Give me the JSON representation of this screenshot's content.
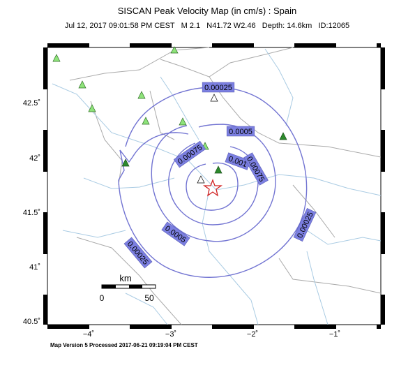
{
  "header": {
    "title": "SISCAN Peak Velocity Map (in cm/s) : Spain",
    "subtitle": "Jul 12, 2017 09:01:58 PM CEST   M 2.1   N41.72 W2.46   Depth: 14.6km   ID:12065"
  },
  "map": {
    "lat_labels": [
      "42.5˚",
      "42˚",
      "41.5˚",
      "41˚",
      "40.5˚"
    ],
    "lon_labels": [
      "−4˚",
      "−3˚",
      "−2˚",
      "−1˚"
    ],
    "contour_labels": [
      "0.00025",
      "0.0005",
      "0.00075",
      "0.001",
      "0.00075",
      "0.0005",
      "0.00025",
      "0.00025"
    ],
    "scale": {
      "unit": "km",
      "start": "0",
      "end": "50"
    }
  },
  "footer": "Map Version 5 Processed 2017-06-21 09:19:04 PM CEST"
}
